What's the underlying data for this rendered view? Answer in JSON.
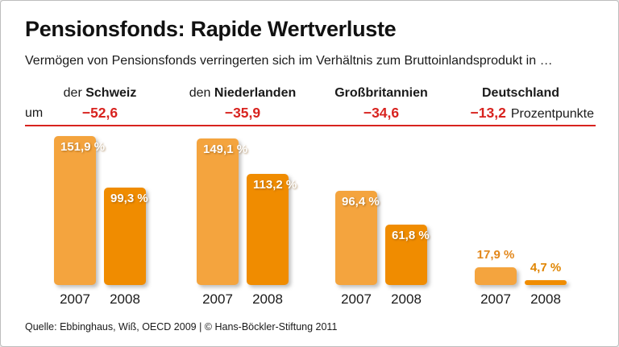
{
  "title": "Pensionsfonds: Rapide Wertverluste",
  "subtitle": "Vermögen von Pensionsfonds verringerten sich im Verhältnis zum Bruttoinlandsprodukt in …",
  "um_label": "um",
  "unit_label": "Prozentpunkte",
  "source": "Quelle: Ebbinghaus, Wiß, OECD 2009 | © Hans-Böckler-Stiftung 2011",
  "colors": {
    "bar_2007": "#f4a43e",
    "bar_2008": "#f08c00",
    "accent_red": "#d8231f",
    "label_above_2007": "#e2871b",
    "label_above_2008": "#e08500"
  },
  "chart_data": {
    "type": "bar",
    "title": "Pensionsfonds: Rapide Wertverluste",
    "categories": [
      "2007",
      "2008"
    ],
    "ylim": [
      0,
      160
    ],
    "grid": false,
    "legend": "none",
    "groups": [
      {
        "slug": "schweiz",
        "prefix": "der",
        "name": "Schweiz",
        "delta": "−52,6",
        "values": [
          151.9,
          99.3
        ],
        "value_labels": [
          "151,9 %",
          "99,3 %"
        ]
      },
      {
        "slug": "niederlanden",
        "prefix": "den",
        "name": "Niederlanden",
        "delta": "−35,9",
        "values": [
          149.1,
          113.2
        ],
        "value_labels": [
          "149,1 %",
          "113,2 %"
        ]
      },
      {
        "slug": "grossbritannien",
        "prefix": "",
        "name": "Großbritannien",
        "delta": "−34,6",
        "values": [
          96.4,
          61.8
        ],
        "value_labels": [
          "96,4 %",
          "61,8 %"
        ]
      },
      {
        "slug": "deutschland",
        "prefix": "",
        "name": "Deutschland",
        "delta": "−13,2",
        "values": [
          17.9,
          4.7
        ],
        "value_labels": [
          "17,9 %",
          "4,7 %"
        ]
      }
    ]
  }
}
